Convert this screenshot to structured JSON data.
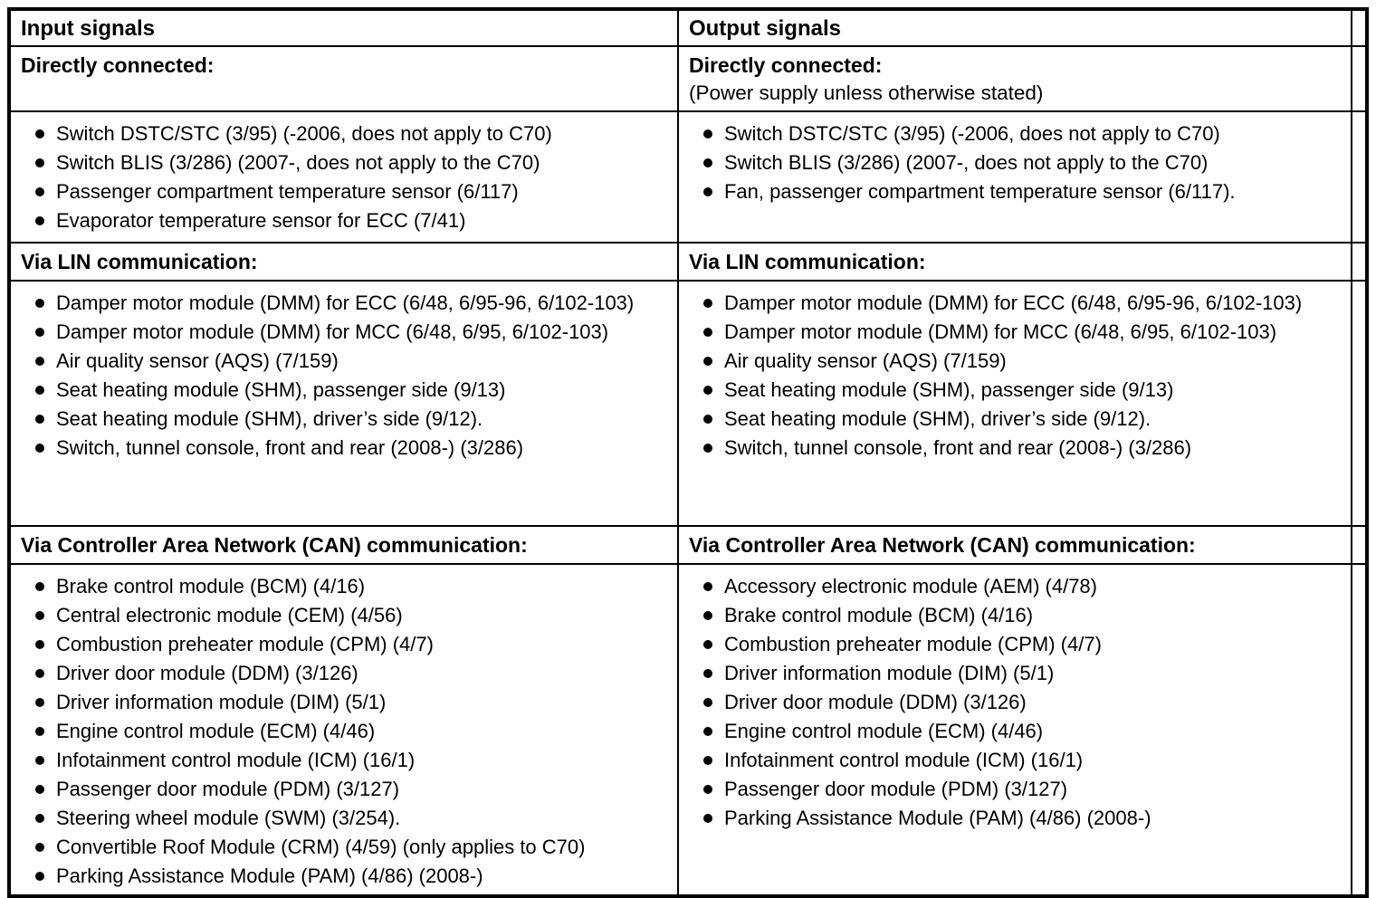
{
  "colors": {
    "text": "#000000",
    "border": "#000000",
    "background": "#ffffff"
  },
  "table": {
    "columns": [
      {
        "header": "Input signals",
        "sections": [
          {
            "title": "Directly connected:",
            "note": "",
            "items": [
              "Switch DSTC/STC (3/95) (-2006, does not apply to C70)",
              "Switch BLIS (3/286) (2007-, does not apply to the C70)",
              "Passenger compartment temperature sensor (6/117)",
              "Evaporator temperature sensor for ECC (7/41)"
            ]
          },
          {
            "title": "Via LIN communication:",
            "note": "",
            "items": [
              "Damper motor module (DMM) for ECC (6/48, 6/95-96, 6/102-103)",
              "Damper motor module (DMM) for MCC (6/48, 6/95, 6/102-103)",
              "Air quality sensor (AQS) (7/159)",
              "Seat heating module (SHM), passenger side (9/13)",
              "Seat heating module (SHM), driver’s side (9/12).",
              "Switch, tunnel console, front and rear (2008-) (3/286)"
            ]
          },
          {
            "title": "Via Controller Area Network (CAN) communication:",
            "note": "",
            "items": [
              "Brake control module (BCM) (4/16)",
              "Central electronic module (CEM) (4/56)",
              "Combustion preheater module (CPM) (4/7)",
              "Driver door module (DDM) (3/126)",
              "Driver information module (DIM) (5/1)",
              "Engine control module (ECM) (4/46)",
              "Infotainment control module (ICM) (16/1)",
              "Passenger door module (PDM) (3/127)",
              "Steering wheel module (SWM) (3/254).",
              "Convertible Roof Module (CRM) (4/59) (only applies to C70)",
              "Parking Assistance Module (PAM) (4/86) (2008-)"
            ]
          }
        ]
      },
      {
        "header": "Output signals",
        "sections": [
          {
            "title": "Directly connected:",
            "note": "(Power supply unless otherwise stated)",
            "items": [
              "Switch DSTC/STC (3/95) (-2006, does not apply to C70)",
              "Switch BLIS (3/286) (2007-, does not apply to the C70)",
              "Fan, passenger compartment temperature sensor (6/117)."
            ]
          },
          {
            "title": "Via LIN communication:",
            "note": "",
            "items": [
              "Damper motor module (DMM) for ECC (6/48, 6/95-96, 6/102-103)",
              "Damper motor module (DMM) for MCC (6/48, 6/95, 6/102-103)",
              "Air quality sensor (AQS) (7/159)",
              "Seat heating module (SHM), passenger side (9/13)",
              "Seat heating module (SHM), driver’s side (9/12).",
              "Switch, tunnel console, front and rear (2008-) (3/286)"
            ]
          },
          {
            "title": "Via Controller Area Network (CAN) communication:",
            "note": "",
            "items": [
              "Accessory electronic module (AEM) (4/78)",
              "Brake control module (BCM) (4/16)",
              "Combustion preheater module (CPM) (4/7)",
              "Driver information module (DIM) (5/1)",
              "Driver door module (DDM) (3/126)",
              "Engine control module (ECM) (4/46)",
              "Infotainment control module (ICM) (16/1)",
              "Passenger door module (PDM) (3/127)",
              "Parking Assistance Module (PAM) (4/86) (2008-)"
            ]
          }
        ]
      }
    ]
  }
}
